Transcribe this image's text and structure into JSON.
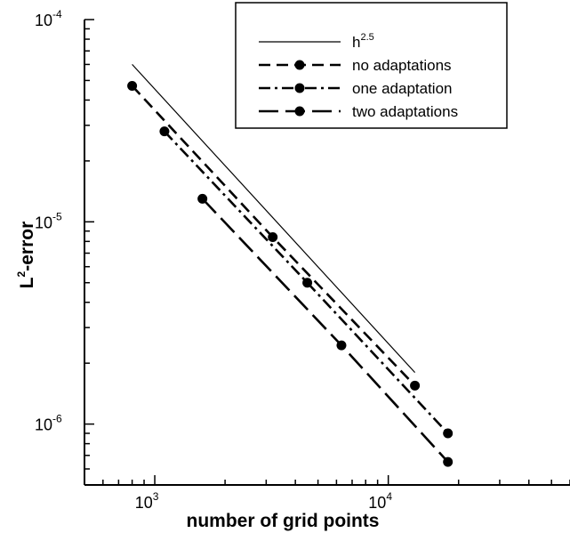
{
  "chart_data": {
    "type": "line",
    "title": "",
    "xlabel": "number of grid points",
    "ylabel": {
      "base": "L",
      "sup": "2",
      "rest": "-error"
    },
    "xscale": "log",
    "yscale": "log",
    "xlim": [
      500,
      60000
    ],
    "ylim": [
      5e-07,
      0.0001
    ],
    "grid": false,
    "legend_position": "top-right",
    "x_tick_labels": [
      {
        "value": 1000,
        "base": "10",
        "exp": "3"
      },
      {
        "value": 10000,
        "base": "10",
        "exp": "4"
      }
    ],
    "y_tick_labels": [
      {
        "value": 1e-06,
        "base": "10",
        "exp": "-6"
      },
      {
        "value": 1e-05,
        "base": "10",
        "exp": "-5"
      },
      {
        "value": 0.0001,
        "base": "10",
        "exp": "-4"
      }
    ],
    "series": [
      {
        "name": "h",
        "name_sup": "2.5",
        "style": "solid",
        "markers": false,
        "x": [
          800,
          13000
        ],
        "y": [
          6e-05,
          1.8e-06
        ]
      },
      {
        "name": "no adaptations",
        "style": "dash",
        "markers": true,
        "x": [
          800,
          3200,
          13000
        ],
        "y": [
          4.7e-05,
          8.4e-06,
          1.55e-06
        ]
      },
      {
        "name": "one adaptation",
        "style": "dashdot",
        "markers": true,
        "x": [
          1100,
          4500,
          18000
        ],
        "y": [
          2.8e-05,
          5e-06,
          9e-07
        ]
      },
      {
        "name": "two adaptations",
        "style": "longdash",
        "markers": true,
        "x": [
          1600,
          6300,
          18000
        ],
        "y": [
          1.3e-05,
          2.45e-06,
          6.5e-07
        ]
      }
    ]
  }
}
